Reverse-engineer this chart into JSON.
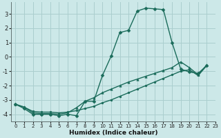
{
  "background_color": "#cce8e8",
  "grid_color": "#aacece",
  "line_color": "#1a6b5a",
  "xlabel": "Humidex (Indice chaleur)",
  "xlim": [
    -0.5,
    23
  ],
  "ylim": [
    -4.5,
    3.8
  ],
  "yticks": [
    -4,
    -3,
    -2,
    -1,
    0,
    1,
    2,
    3
  ],
  "xticks": [
    0,
    1,
    2,
    3,
    4,
    5,
    6,
    7,
    8,
    9,
    10,
    11,
    12,
    13,
    14,
    15,
    16,
    17,
    18,
    19,
    20,
    21,
    22,
    23
  ],
  "series": [
    {
      "x": [
        0,
        1,
        2,
        3,
        4,
        5,
        6,
        7,
        8,
        9,
        10,
        11,
        12,
        13,
        14,
        15,
        16,
        17,
        18,
        19,
        20,
        21,
        22
      ],
      "y": [
        -3.3,
        -3.6,
        -4.0,
        -4.0,
        -4.0,
        -4.1,
        -4.0,
        -4.1,
        -3.1,
        -3.1,
        -1.3,
        0.05,
        1.7,
        1.85,
        3.2,
        3.4,
        3.35,
        3.3,
        1.0,
        -0.85,
        -1.05,
        -1.15,
        -0.6
      ],
      "marker": "D",
      "markersize": 2.5
    },
    {
      "x": [
        0,
        1,
        2,
        3,
        4,
        5,
        6,
        7,
        8,
        9,
        10,
        11,
        12,
        13,
        14,
        15,
        16,
        17,
        18,
        19,
        20,
        21,
        22
      ],
      "y": [
        -3.3,
        -3.5,
        -3.9,
        -3.95,
        -3.95,
        -4.0,
        -3.9,
        -3.55,
        -3.1,
        -2.85,
        -2.5,
        -2.25,
        -2.0,
        -1.75,
        -1.55,
        -1.35,
        -1.15,
        -0.95,
        -0.75,
        -0.35,
        -0.75,
        -1.25,
        -0.55
      ],
      "marker": "^",
      "markersize": 2.5
    },
    {
      "x": [
        0,
        1,
        2,
        3,
        4,
        5,
        6,
        7,
        8,
        9,
        10,
        11,
        12,
        13,
        14,
        15,
        16,
        17,
        18,
        19,
        20,
        21,
        22
      ],
      "y": [
        -3.3,
        -3.5,
        -3.8,
        -3.85,
        -3.85,
        -3.9,
        -3.85,
        -3.75,
        -3.6,
        -3.45,
        -3.2,
        -3.0,
        -2.75,
        -2.5,
        -2.25,
        -2.0,
        -1.75,
        -1.5,
        -1.25,
        -1.0,
        -0.9,
        -1.3,
        -0.6
      ],
      "marker": "o",
      "markersize": 2.0
    }
  ]
}
